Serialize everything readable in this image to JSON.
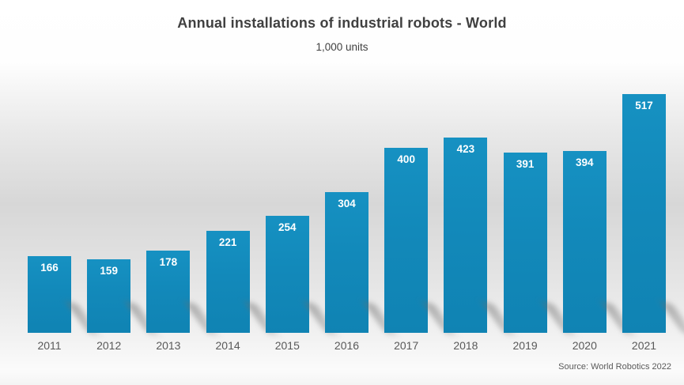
{
  "header": {
    "title": "Annual installations of industrial robots - World",
    "subtitle": "1,000 units"
  },
  "footer": {
    "source": "Source: World Robotics 2022"
  },
  "colors": {
    "bar_fill": "#1289ba",
    "title_text": "#404040",
    "axis_text": "#595959",
    "value_label_text": "#ffffff",
    "background_mid_gray": "#d7d7d7"
  },
  "chart_data": {
    "type": "bar",
    "title": "Annual installations of industrial robots - World",
    "subtitle": "1,000 units",
    "unit_label": "1,000 units",
    "categories": [
      "2011",
      "2012",
      "2013",
      "2014",
      "2015",
      "2016",
      "2017",
      "2018",
      "2019",
      "2020",
      "2021"
    ],
    "values": [
      166,
      159,
      178,
      221,
      254,
      304,
      400,
      423,
      391,
      394,
      517
    ],
    "value_labels_visible": true,
    "xlabel": "",
    "ylabel": "",
    "ylim": [
      0,
      540
    ],
    "gridlines": false,
    "y_axis_visible": false,
    "legend": "none",
    "source": "Source: World Robotics 2022"
  }
}
